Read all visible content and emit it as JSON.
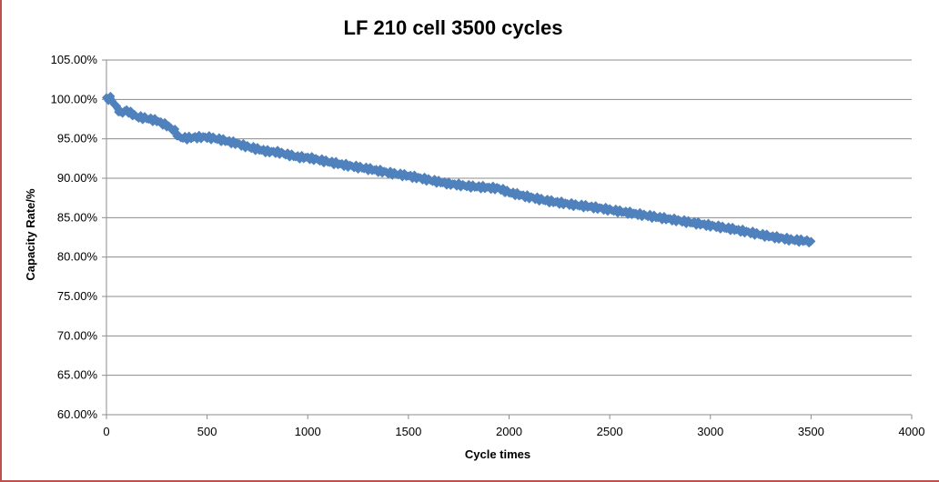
{
  "chart_data": {
    "type": "scatter",
    "title": "LF 210 cell 3500 cycles",
    "xlabel": "Cycle times",
    "ylabel": "Capacity Rate/%",
    "xlim": [
      0,
      4000
    ],
    "ylim": [
      60,
      105
    ],
    "x_ticks": [
      0,
      500,
      1000,
      1500,
      2000,
      2500,
      3000,
      3500,
      4000
    ],
    "y_ticks": [
      60,
      65,
      70,
      75,
      80,
      85,
      90,
      95,
      100,
      105
    ],
    "y_tick_labels": [
      "60.00%",
      "65.00%",
      "70.00%",
      "75.00%",
      "80.00%",
      "85.00%",
      "90.00%",
      "95.00%",
      "100.00%",
      "105.00%"
    ],
    "grid": true,
    "marker": "diamond",
    "series": [
      {
        "name": "Capacity Rate",
        "color": "#4f81bd",
        "x": [
          0,
          20,
          50,
          70,
          100,
          150,
          200,
          250,
          300,
          340,
          360,
          400,
          450,
          500,
          550,
          600,
          650,
          700,
          750,
          800,
          850,
          900,
          950,
          1000,
          1100,
          1200,
          1300,
          1400,
          1500,
          1600,
          1700,
          1800,
          1900,
          1950,
          2000,
          2100,
          2200,
          2300,
          2400,
          2500,
          2600,
          2700,
          2800,
          2900,
          3000,
          3100,
          3200,
          3300,
          3400,
          3500
        ],
        "y": [
          100.0,
          100.2,
          99.0,
          98.3,
          98.6,
          97.8,
          97.6,
          97.3,
          96.7,
          96.0,
          95.2,
          95.1,
          95.2,
          95.2,
          95.0,
          94.7,
          94.4,
          94.0,
          93.7,
          93.4,
          93.3,
          93.0,
          92.7,
          92.6,
          92.1,
          91.6,
          91.2,
          90.7,
          90.3,
          89.8,
          89.3,
          89.0,
          88.8,
          88.7,
          88.2,
          87.6,
          87.1,
          86.7,
          86.4,
          86.0,
          85.6,
          85.2,
          84.8,
          84.4,
          84.0,
          83.6,
          83.1,
          82.6,
          82.2,
          82.0
        ]
      }
    ]
  }
}
